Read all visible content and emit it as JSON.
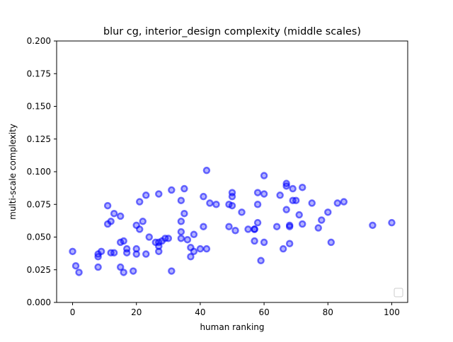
{
  "chart_data": {
    "type": "scatter",
    "title": "blur cg, interior_design complexity (middle scales)",
    "xlabel": "human ranking",
    "ylabel": "multi-scale complexity",
    "xlim": [
      -5,
      105
    ],
    "ylim": [
      0.0,
      0.2
    ],
    "xticks": [
      0,
      20,
      40,
      60,
      80,
      100
    ],
    "xtick_labels": [
      "0",
      "20",
      "40",
      "60",
      "80",
      "100"
    ],
    "yticks": [
      0.0,
      0.025,
      0.05,
      0.075,
      0.1,
      0.125,
      0.15,
      0.175,
      0.2
    ],
    "ytick_labels": [
      "0.000",
      "0.025",
      "0.050",
      "0.075",
      "0.100",
      "0.125",
      "0.150",
      "0.175",
      "0.200"
    ],
    "grid": false,
    "legend": {
      "position": "lower right",
      "entries": []
    },
    "marker_color": "#0000ff",
    "points": [
      [
        0,
        0.039
      ],
      [
        1,
        0.028
      ],
      [
        2,
        0.023
      ],
      [
        8,
        0.027
      ],
      [
        8,
        0.035
      ],
      [
        8,
        0.037
      ],
      [
        9,
        0.039
      ],
      [
        11,
        0.074
      ],
      [
        11,
        0.06
      ],
      [
        12,
        0.062
      ],
      [
        12,
        0.038
      ],
      [
        13,
        0.068
      ],
      [
        13,
        0.038
      ],
      [
        15,
        0.066
      ],
      [
        15,
        0.046
      ],
      [
        15,
        0.027
      ],
      [
        16,
        0.047
      ],
      [
        16,
        0.023
      ],
      [
        17,
        0.038
      ],
      [
        17,
        0.041
      ],
      [
        19,
        0.024
      ],
      [
        20,
        0.041
      ],
      [
        20,
        0.037
      ],
      [
        20,
        0.059
      ],
      [
        21,
        0.056
      ],
      [
        21,
        0.077
      ],
      [
        22,
        0.062
      ],
      [
        23,
        0.082
      ],
      [
        23,
        0.037
      ],
      [
        24,
        0.05
      ],
      [
        26,
        0.046
      ],
      [
        27,
        0.083
      ],
      [
        27,
        0.046
      ],
      [
        27,
        0.039
      ],
      [
        27,
        0.043
      ],
      [
        28,
        0.047
      ],
      [
        29,
        0.049
      ],
      [
        30,
        0.049
      ],
      [
        31,
        0.086
      ],
      [
        31,
        0.024
      ],
      [
        34,
        0.078
      ],
      [
        34,
        0.062
      ],
      [
        34,
        0.054
      ],
      [
        34,
        0.049
      ],
      [
        35,
        0.087
      ],
      [
        35,
        0.068
      ],
      [
        36,
        0.048
      ],
      [
        37,
        0.042
      ],
      [
        37,
        0.035
      ],
      [
        38,
        0.039
      ],
      [
        38,
        0.052
      ],
      [
        40,
        0.041
      ],
      [
        41,
        0.081
      ],
      [
        41,
        0.058
      ],
      [
        42,
        0.101
      ],
      [
        42,
        0.041
      ],
      [
        43,
        0.076
      ],
      [
        45,
        0.075
      ],
      [
        49,
        0.075
      ],
      [
        49,
        0.058
      ],
      [
        50,
        0.084
      ],
      [
        50,
        0.081
      ],
      [
        50,
        0.074
      ],
      [
        51,
        0.055
      ],
      [
        53,
        0.069
      ],
      [
        55,
        0.056
      ],
      [
        57,
        0.056
      ],
      [
        57,
        0.047
      ],
      [
        57,
        0.056
      ],
      [
        58,
        0.084
      ],
      [
        58,
        0.075
      ],
      [
        58,
        0.061
      ],
      [
        59,
        0.032
      ],
      [
        60,
        0.097
      ],
      [
        60,
        0.083
      ],
      [
        60,
        0.046
      ],
      [
        64,
        0.058
      ],
      [
        65,
        0.082
      ],
      [
        66,
        0.041
      ],
      [
        67,
        0.091
      ],
      [
        67,
        0.089
      ],
      [
        67,
        0.071
      ],
      [
        68,
        0.059
      ],
      [
        68,
        0.058
      ],
      [
        68,
        0.045
      ],
      [
        69,
        0.087
      ],
      [
        69,
        0.078
      ],
      [
        70,
        0.078
      ],
      [
        71,
        0.067
      ],
      [
        72,
        0.088
      ],
      [
        72,
        0.06
      ],
      [
        75,
        0.076
      ],
      [
        77,
        0.057
      ],
      [
        78,
        0.063
      ],
      [
        80,
        0.069
      ],
      [
        81,
        0.046
      ],
      [
        83,
        0.076
      ],
      [
        85,
        0.077
      ],
      [
        94,
        0.059
      ],
      [
        100,
        0.061
      ]
    ]
  }
}
